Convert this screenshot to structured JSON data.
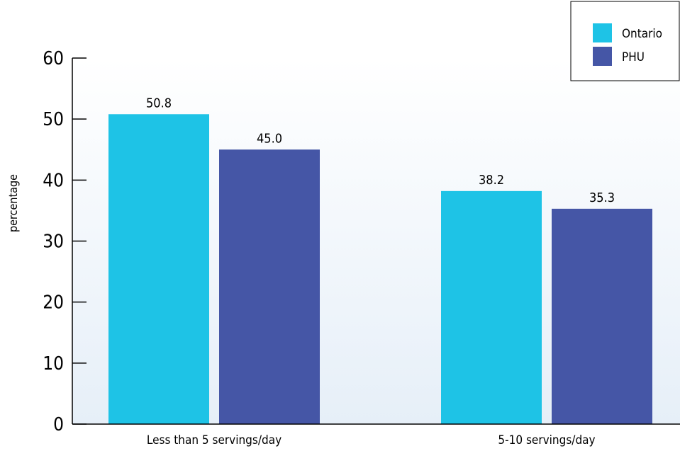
{
  "chart_data": {
    "type": "bar",
    "title": "",
    "xlabel": "",
    "ylabel": "percentage",
    "ylim": [
      0,
      60
    ],
    "yticks": [
      "0",
      "10",
      "20",
      "30",
      "40",
      "50",
      "60"
    ],
    "categories": [
      "Less than 5 servings/day",
      "5-10 servings/day"
    ],
    "series": [
      {
        "name": "Ontario",
        "color": "#1ec3e6",
        "values": [
          50.8,
          38.2
        ],
        "labels": [
          "50.8",
          "38.2"
        ]
      },
      {
        "name": "PHU",
        "color": "#4556a6",
        "values": [
          45.0,
          35.3
        ],
        "labels": [
          "45.0",
          "35.3"
        ]
      }
    ],
    "legend_position": "top-right",
    "grid": false
  }
}
